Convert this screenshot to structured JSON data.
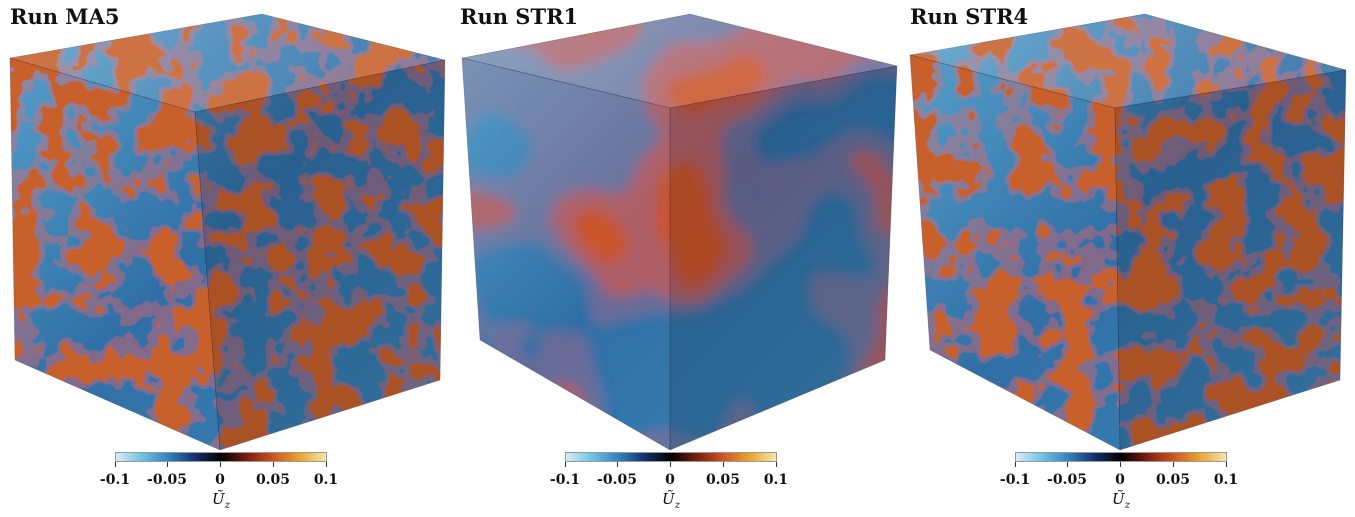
{
  "panels": [
    {
      "title": "Run MA5",
      "pattern": "fine"
    },
    {
      "title": "Run STR1",
      "pattern": "coarse"
    },
    {
      "title": "Run STR4",
      "pattern": "fine"
    }
  ],
  "colorbar": {
    "ticks": [
      "-0.1",
      "-0.05",
      "0",
      "0.05",
      "0.1"
    ],
    "range": [
      -0.1,
      0.1
    ],
    "variable": "Ũ",
    "subscript": "z",
    "colors": [
      "#d6edf7",
      "#6cc3e4",
      "#2f83c2",
      "#14306e",
      "#000000",
      "#7d1d10",
      "#d1541c",
      "#eaa52e",
      "#f5e6a8"
    ]
  }
}
